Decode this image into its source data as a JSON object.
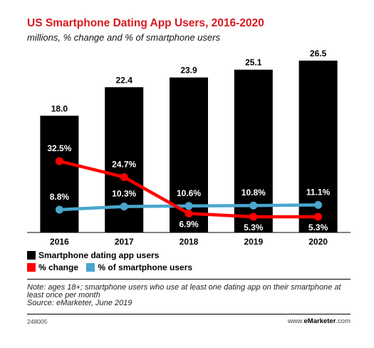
{
  "header": {
    "title": "US Smartphone Dating App Users, 2016-2020",
    "subtitle": "millions, % change and % of smartphone users"
  },
  "chart_data": {
    "type": "bar",
    "categories": [
      "2016",
      "2017",
      "2018",
      "2019",
      "2020"
    ],
    "series": [
      {
        "name": "Smartphone dating app users",
        "type": "bar",
        "color": "#000000",
        "values": [
          18.0,
          22.4,
          23.9,
          25.1,
          26.5
        ],
        "labels": [
          "18.0",
          "22.4",
          "23.9",
          "25.1",
          "26.5"
        ]
      },
      {
        "name": "% change",
        "type": "line",
        "color": "#ff0000",
        "values": [
          32.5,
          24.7,
          6.9,
          5.3,
          5.3
        ],
        "labels": [
          "32.5%",
          "24.7%",
          "6.9%",
          "5.3%",
          "5.3%"
        ]
      },
      {
        "name": "% of smartphone users",
        "type": "line",
        "color": "#4aa6cc",
        "values": [
          8.8,
          10.3,
          10.6,
          10.8,
          11.1
        ],
        "labels": [
          "8.8%",
          "10.3%",
          "10.6%",
          "10.8%",
          "11.1%"
        ]
      }
    ],
    "bar_ylim": [
      0,
      28
    ],
    "line_ylim": [
      0,
      50
    ],
    "grid": false,
    "legend_position": "bottom"
  },
  "legend": {
    "bars_label": "Smartphone dating app users",
    "change_label": "% change",
    "share_label": "% of smartphone users"
  },
  "note": {
    "text": "Note: ages 18+; smartphone users who use at least one dating app on their smartphone at least once per month",
    "source": "Source: eMarketer, June 2019"
  },
  "footer": {
    "id": "248005",
    "brand_prefix": "www.",
    "brand_bold": "eMarketer",
    "brand_suffix": ".com"
  },
  "colors": {
    "title": "#d71920",
    "bars": "#000000",
    "change": "#ff0000",
    "share": "#4aa6cc"
  }
}
